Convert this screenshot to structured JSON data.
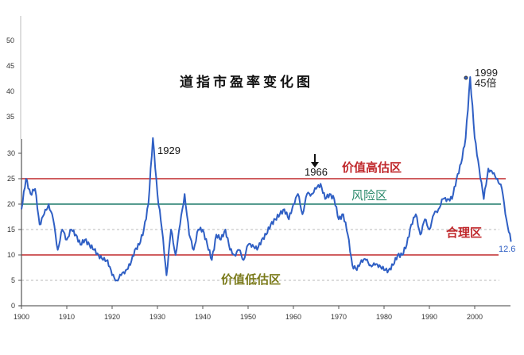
{
  "chart_data": {
    "type": "line",
    "title": "道指市盈率变化图",
    "xlabel": "",
    "ylabel": "",
    "xlim": [
      1900,
      2008
    ],
    "ylim": [
      0,
      50
    ],
    "x_ticks": [
      "1900",
      "1910",
      "1920",
      "1930",
      "1940",
      "1950",
      "1960",
      "1970",
      "1980",
      "1990",
      "2000"
    ],
    "y_ticks": [
      "0",
      "5",
      "10",
      "15",
      "20",
      "25",
      "30",
      "35",
      "40",
      "45",
      "50"
    ],
    "y_axis_break": 32,
    "grid": false,
    "series": [
      {
        "color": "#2f5fc4",
        "x": [
          1900,
          1901,
          1902,
          1903,
          1904,
          1905,
          1906,
          1907,
          1908,
          1909,
          1910,
          1911,
          1912,
          1913,
          1914,
          1915,
          1916,
          1917,
          1918,
          1919,
          1920,
          1921,
          1922,
          1923,
          1924,
          1925,
          1926,
          1927,
          1928,
          1929,
          1930,
          1931,
          1932,
          1933,
          1934,
          1935,
          1936,
          1937,
          1938,
          1939,
          1940,
          1941,
          1942,
          1943,
          1944,
          1945,
          1946,
          1947,
          1948,
          1949,
          1950,
          1951,
          1952,
          1953,
          1954,
          1955,
          1956,
          1957,
          1958,
          1959,
          1960,
          1961,
          1962,
          1963,
          1964,
          1965,
          1966,
          1967,
          1968,
          1969,
          1970,
          1971,
          1972,
          1973,
          1974,
          1975,
          1976,
          1977,
          1978,
          1979,
          1980,
          1981,
          1982,
          1983,
          1984,
          1985,
          1986,
          1987,
          1988,
          1989,
          1990,
          1991,
          1992,
          1993,
          1994,
          1995,
          1996,
          1997,
          1998,
          1999,
          2000,
          2001,
          2002,
          2003,
          2004,
          2005,
          2006,
          2007,
          2008
        ],
        "y": [
          19,
          25,
          22,
          23,
          16,
          18,
          20,
          17,
          11,
          15,
          13,
          15,
          14,
          12,
          13,
          12,
          11,
          10,
          9,
          9,
          6,
          5,
          6,
          7,
          8,
          11,
          12,
          15,
          20,
          33,
          22,
          15,
          6,
          15,
          10,
          16,
          22,
          14,
          11,
          15,
          15,
          12,
          9,
          14,
          13,
          15,
          11,
          10,
          11,
          9,
          12,
          12,
          11,
          13,
          14,
          16,
          17,
          18,
          19,
          17,
          20,
          22,
          18,
          22,
          22,
          23,
          24,
          21,
          22,
          21,
          17,
          18,
          14,
          8,
          7,
          9,
          9,
          8,
          8,
          8,
          7,
          7,
          8,
          10,
          10,
          12,
          16,
          18,
          14,
          17,
          15,
          18,
          19,
          21,
          21,
          21,
          25,
          28,
          33,
          45,
          33,
          27,
          21,
          27,
          26,
          25,
          23,
          17,
          12.6
        ]
      }
    ],
    "reference_lines": [
      {
        "value": 25,
        "color": "#c0282c",
        "style": "solid"
      },
      {
        "value": 20,
        "color": "#1f7a6a",
        "style": "solid"
      },
      {
        "value": 15,
        "color": "#b8b8b8",
        "style": "dashed"
      },
      {
        "value": 10,
        "color": "#c0282c",
        "style": "solid"
      },
      {
        "value": 5,
        "color": "#b8b8b8",
        "style": "dashed"
      }
    ],
    "annotations": {
      "peak_1929": "1929",
      "peak_1966": "1966",
      "peak_1999_year": "1999",
      "peak_1999_value": "45倍",
      "last_value": "12.6"
    },
    "zones": {
      "overvalued": {
        "label": "价值高估区",
        "color": "#c0282c"
      },
      "risk": {
        "label": "风险区",
        "color": "#2e8b6e"
      },
      "reasonable": {
        "label": "合理区",
        "color": "#c0282c"
      },
      "undervalued": {
        "label": "价值低估区",
        "color": "#7a7a1a"
      }
    }
  }
}
